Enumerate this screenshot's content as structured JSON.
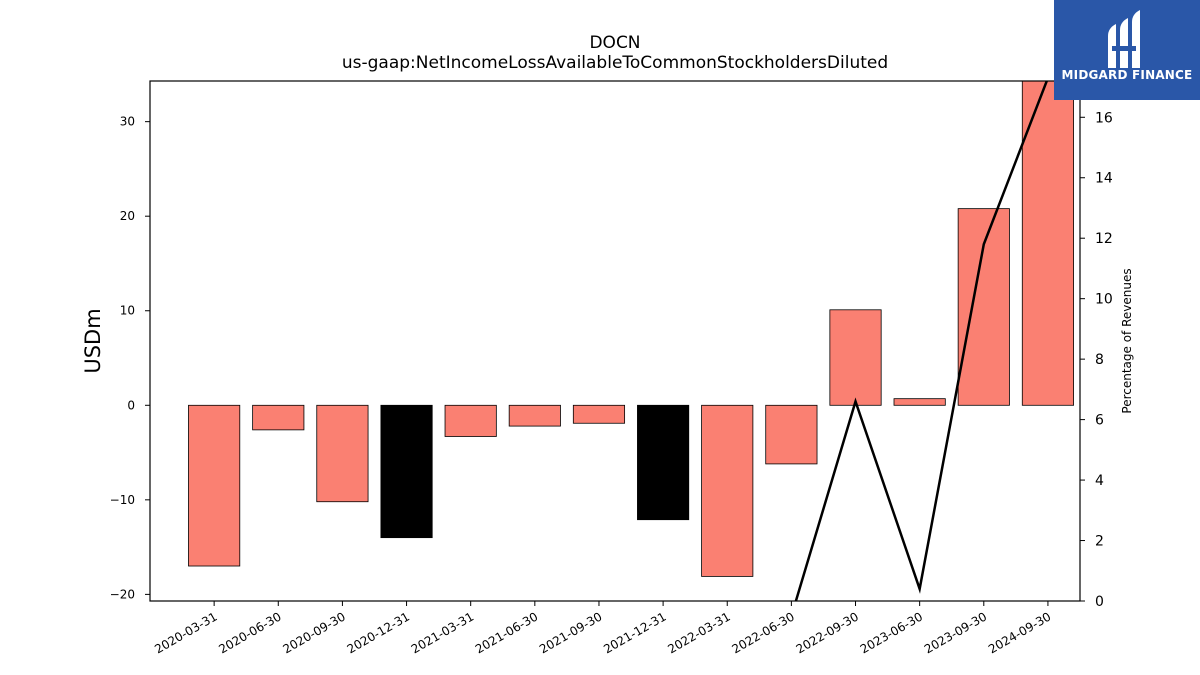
{
  "chart_data": {
    "type": "bar",
    "title": "DOCN",
    "subtitle": "us-gaap:NetIncomeLossAvailableToCommonStockholdersDiluted",
    "ylabel": "USDm",
    "y2label": "Percentage of Revenues",
    "ylim": [
      -20.7,
      34.3
    ],
    "y2lim": [
      0,
      17.2
    ],
    "yticks": [
      -20,
      -10,
      0,
      10,
      20,
      30
    ],
    "yticklabels": [
      "−20",
      "−10",
      "0",
      "10",
      "20",
      "30"
    ],
    "y2ticks": [
      0,
      2,
      4,
      6,
      8,
      10,
      12,
      14,
      16
    ],
    "categories": [
      "2020-03-31",
      "2020-06-30",
      "2020-09-30",
      "2020-12-31",
      "2021-03-31",
      "2021-06-30",
      "2021-09-30",
      "2021-12-31",
      "2022-03-31",
      "2022-06-30",
      "2022-09-30",
      "2023-06-30",
      "2023-09-30",
      "2024-09-30"
    ],
    "series": [
      {
        "values": [
          -17.0,
          -2.6,
          -10.2,
          -14.0,
          -3.3,
          -2.2,
          -1.9,
          -12.1,
          -18.1,
          -6.2,
          10.1,
          0.7,
          20.8,
          34.3
        ],
        "colors": [
          "#fa8072",
          "#fa8072",
          "#fa8072",
          "#000000",
          "#fa8072",
          "#fa8072",
          "#fa8072",
          "#000000",
          "#fa8072",
          "#fa8072",
          "#fa8072",
          "#fa8072",
          "#fa8072",
          "#fa8072"
        ]
      },
      {
        "axis": "right",
        "type": "line",
        "color": "#000000",
        "values": [
          null,
          null,
          null,
          null,
          null,
          null,
          null,
          null,
          null,
          -0.5,
          6.6,
          0.4,
          11.8,
          17.3
        ]
      }
    ],
    "grid": false
  },
  "logo": {
    "text": "MIDGARD FINANCE",
    "color": "#2a57a8"
  }
}
